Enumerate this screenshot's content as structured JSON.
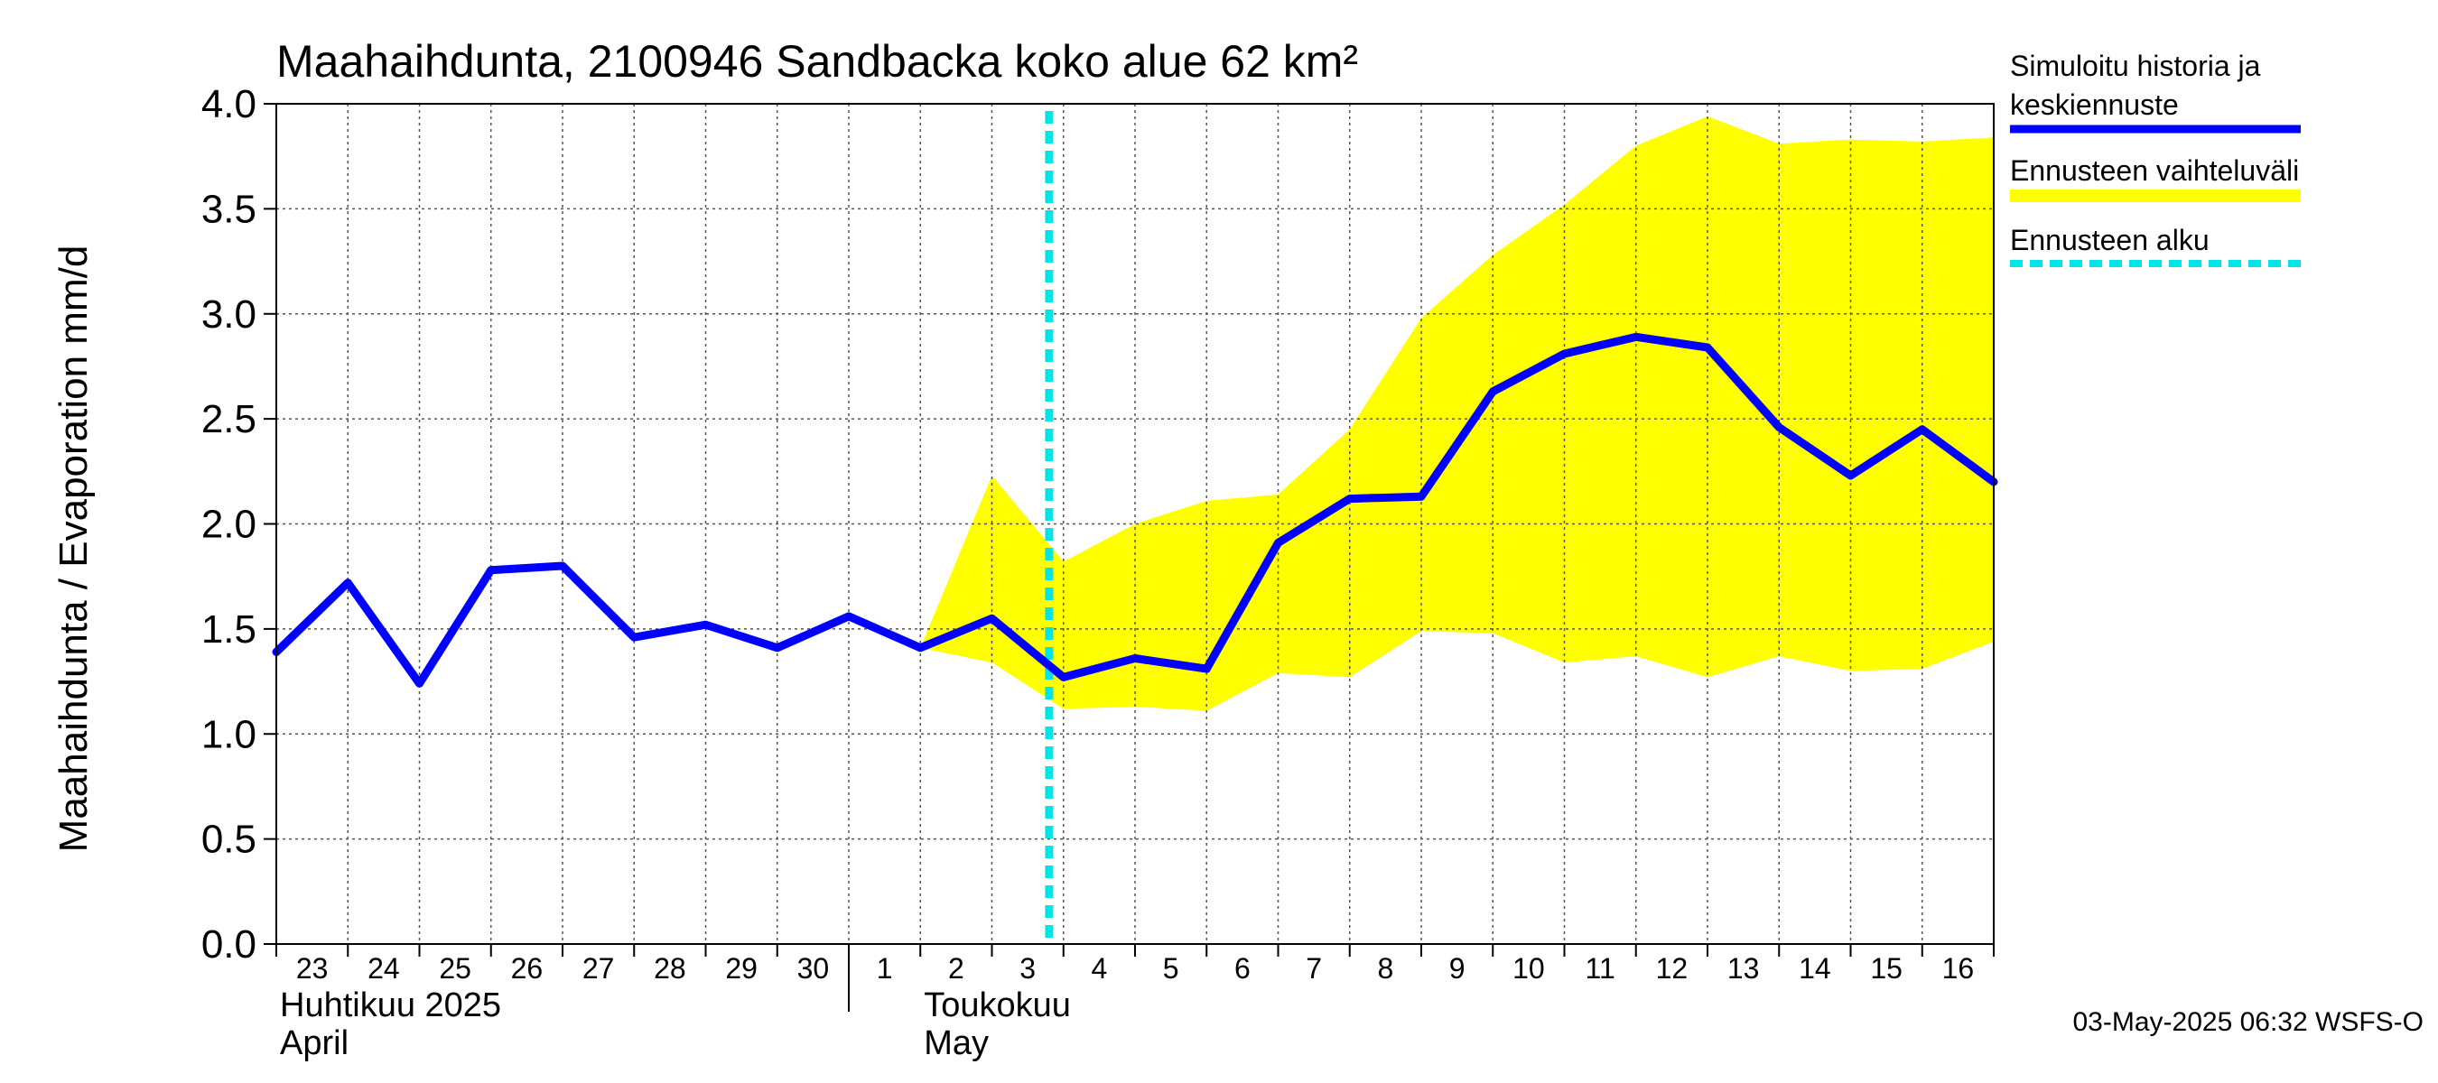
{
  "chart_data": {
    "type": "line",
    "title": "Maahaihdunta, 2100946 Sandbacka koko alue 62 km²",
    "ylabel": "Maahaihdunta / Evaporation   mm/d",
    "ylim": [
      0,
      4
    ],
    "yticks": [
      "0.0",
      "0.5",
      "1.0",
      "1.5",
      "2.0",
      "2.5",
      "3.0",
      "3.5",
      "4.0"
    ],
    "ytick_values": [
      0,
      0.5,
      1.0,
      1.5,
      2.0,
      2.5,
      3.0,
      3.5,
      4.0
    ],
    "xlim": [
      0,
      24
    ],
    "x_tick_labels": [
      "23",
      "24",
      "25",
      "26",
      "27",
      "28",
      "29",
      "30",
      "1",
      "2",
      "3",
      "4",
      "5",
      "6",
      "7",
      "8",
      "9",
      "10",
      "11",
      "12",
      "13",
      "14",
      "15",
      "16"
    ],
    "month_labels": [
      {
        "line1": "Huhtikuu  2025",
        "line2": "April"
      },
      {
        "line1": "Toukokuu",
        "line2": "May"
      }
    ],
    "month_start_day_index": 8,
    "forecast_start": 10.8,
    "grid": true,
    "legend_placement": "right",
    "series": [
      {
        "name": "Simuloitu historia ja keskiennuste",
        "color": "#0000ff",
        "x": [
          0,
          1,
          2,
          3,
          4,
          5,
          6,
          7,
          8,
          9,
          10,
          11,
          12,
          13,
          14,
          15,
          16,
          17,
          18,
          19,
          20,
          21,
          22,
          23,
          24
        ],
        "y": [
          1.39,
          1.72,
          1.24,
          1.78,
          1.8,
          1.46,
          1.52,
          1.41,
          1.56,
          1.41,
          1.55,
          1.27,
          1.36,
          1.31,
          1.91,
          2.12,
          2.13,
          2.63,
          2.81,
          2.89,
          2.84,
          2.46,
          2.23,
          2.45,
          2.2
        ]
      }
    ],
    "band": {
      "name": "Ennusteen vaihteluväli",
      "color": "#ffff00",
      "x": [
        9,
        10,
        11,
        12,
        13,
        14,
        15,
        16,
        17,
        18,
        19,
        20,
        21,
        22,
        23,
        24
      ],
      "upper": [
        1.41,
        2.23,
        1.82,
        2.0,
        2.11,
        2.14,
        2.45,
        2.98,
        3.28,
        3.52,
        3.8,
        3.94,
        3.81,
        3.83,
        3.82,
        3.84
      ],
      "lower": [
        1.41,
        1.34,
        1.12,
        1.13,
        1.11,
        1.29,
        1.27,
        1.49,
        1.48,
        1.34,
        1.37,
        1.27,
        1.37,
        1.3,
        1.31,
        1.44
      ]
    },
    "legend": [
      {
        "label_line1": "Simuloitu historia ja",
        "label_line2": "keskiennuste",
        "color": "#0000ff",
        "style": "solid"
      },
      {
        "label_line1": "Ennusteen vaihteluväli",
        "label_line2": "",
        "color": "#ffff00",
        "style": "band"
      },
      {
        "label_line1": "Ennusteen alku",
        "label_line2": "",
        "color": "#00e5e5",
        "style": "dashed"
      }
    ],
    "footer": "03-May-2025 06:32 WSFS-O"
  }
}
